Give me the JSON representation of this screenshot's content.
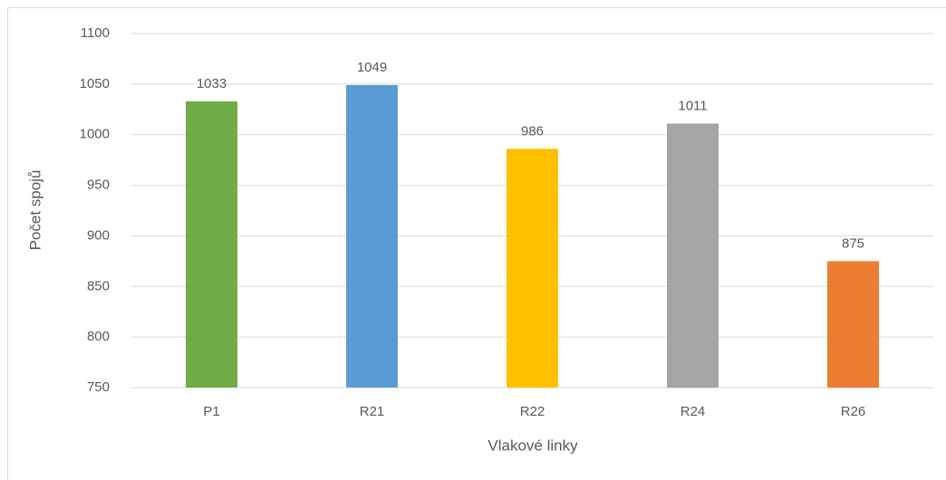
{
  "chart_data": {
    "type": "bar",
    "categories": [
      "P1",
      "R21",
      "R22",
      "R24",
      "R26"
    ],
    "values": [
      1033,
      1049,
      986,
      1011,
      875
    ],
    "colors": [
      "#70ad47",
      "#5b9bd5",
      "#ffc000",
      "#a5a5a5",
      "#ed7d31"
    ],
    "x_label": "Vlakové linky",
    "y_label": "Počet spojů",
    "ylim": [
      750,
      1100
    ],
    "yticks": [
      750,
      800,
      850,
      900,
      950,
      1000,
      1050,
      1100
    ],
    "grid": true,
    "data_labels": true
  }
}
